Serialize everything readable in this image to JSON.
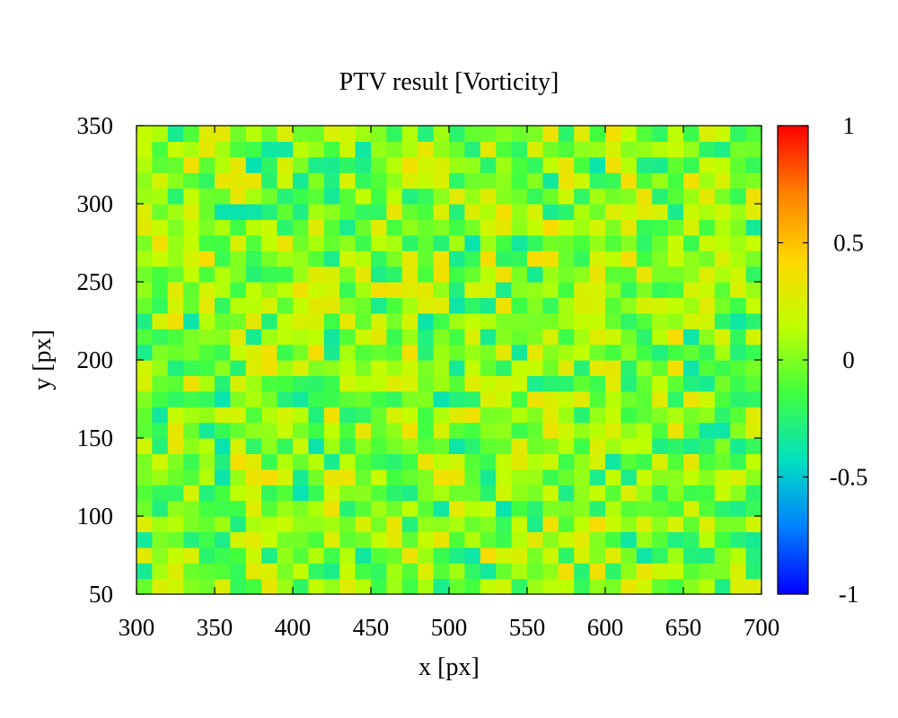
{
  "chart_data": {
    "type": "heatmap",
    "title": "PTV result [Vorticity]",
    "xlabel": "x [px]",
    "ylabel": "y [px]",
    "xlim": [
      300,
      700
    ],
    "ylim": [
      50,
      350
    ],
    "xticks": [
      "300",
      "350",
      "400",
      "450",
      "500",
      "550",
      "600",
      "650",
      "700"
    ],
    "yticks": [
      "50",
      "100",
      "150",
      "200",
      "250",
      "300",
      "350"
    ],
    "colorbar": {
      "range": [
        -1,
        1
      ],
      "ticks": [
        "1",
        "0.5",
        "0",
        "-0.5",
        "-1"
      ],
      "colormap": [
        "#0000ff",
        "#0080ff",
        "#00e0c0",
        "#40ff40",
        "#c0ff00",
        "#ffd700",
        "#ff8000",
        "#ff0000"
      ]
    },
    "grid_cells": {
      "nx": 40,
      "ny": 30,
      "cell_size_data_units": 10
    },
    "z_summary": "Vorticity values mostly between -0.4 and 0.4, dominated by near-zero green with scattered yellow (positive) and teal (negative) patches"
  }
}
